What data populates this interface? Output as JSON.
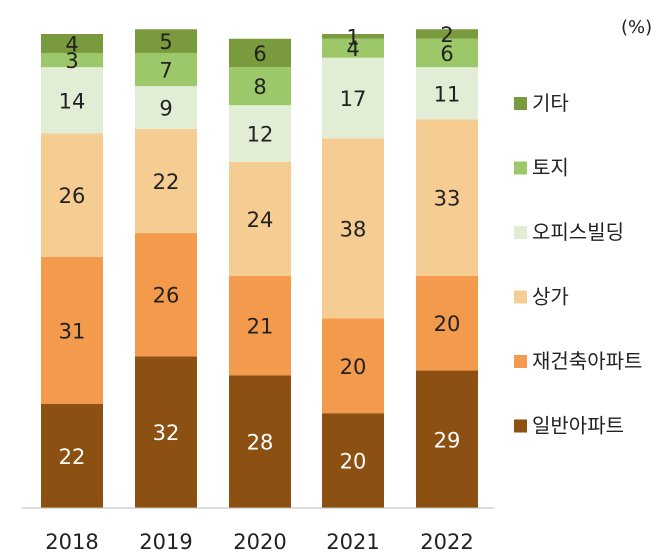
{
  "chart_data": {
    "type": "bar",
    "stacked": true,
    "unit": "(%)",
    "categories": [
      "2018",
      "2019",
      "2020",
      "2021",
      "2022"
    ],
    "ylim": [
      0,
      100
    ],
    "grid": false,
    "legend_position": "right",
    "series": [
      {
        "name": "일반아파트",
        "color": "#8B5012",
        "label_color": "#ffffff",
        "values": [
          22,
          32,
          28,
          20,
          29
        ]
      },
      {
        "name": "재건축아파트",
        "color": "#F49A4C",
        "label_color": "#222222",
        "values": [
          31,
          26,
          21,
          20,
          20
        ]
      },
      {
        "name": "상가",
        "color": "#F5CC92",
        "label_color": "#222222",
        "values": [
          26,
          22,
          24,
          38,
          33
        ]
      },
      {
        "name": "오피스빌딩",
        "color": "#E2EDD5",
        "label_color": "#222222",
        "values": [
          14,
          9,
          12,
          17,
          11
        ]
      },
      {
        "name": "토지",
        "color": "#9DC86A",
        "label_color": "#222222",
        "values": [
          3,
          7,
          8,
          4,
          6
        ]
      },
      {
        "name": "기타",
        "color": "#7A9A3E",
        "label_color": "#222222",
        "values": [
          4,
          5,
          6,
          1,
          2
        ]
      }
    ]
  }
}
